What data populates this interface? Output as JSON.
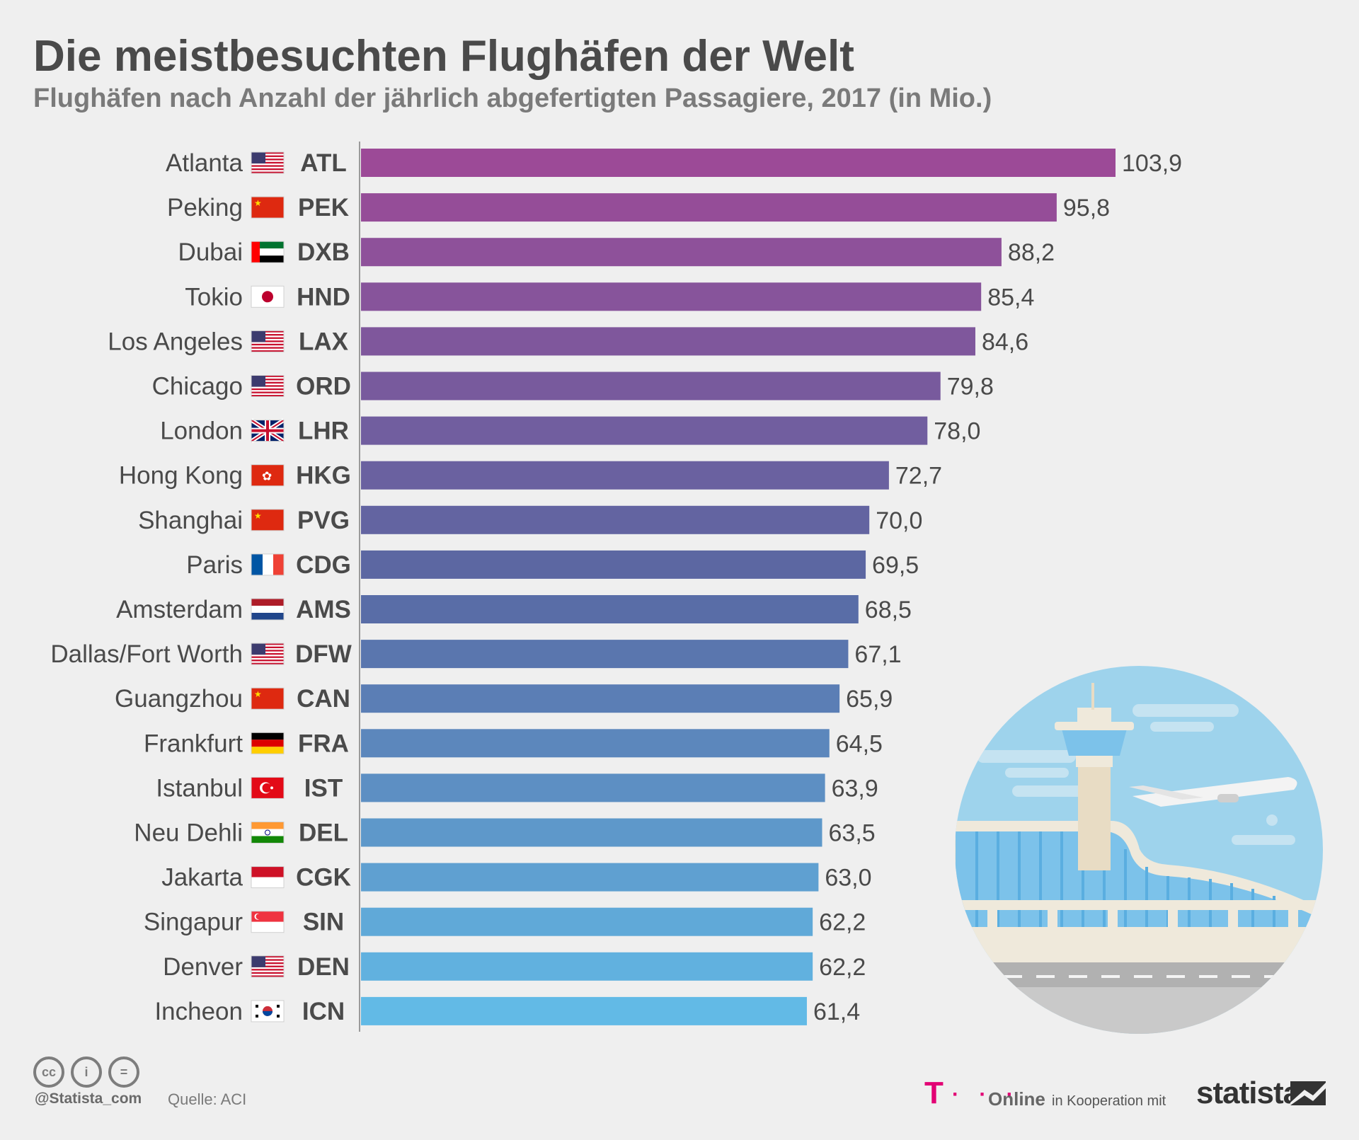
{
  "title": "Die meistbesuchten Flughäfen der Welt",
  "subtitle": "Flughäfen nach Anzahl der jährlich abgefertigten Passagiere, 2017 (in Mio.)",
  "footer": {
    "cc_icons": [
      "cc",
      "i",
      "="
    ],
    "handle": "@Statista_com",
    "source": "Quelle: ACI",
    "telekom_mark": "T",
    "telekom_dots": "· · ·",
    "online": "Online",
    "cooperation": "in Kooperation mit",
    "brand": "statista"
  },
  "chart_data": {
    "type": "bar",
    "orientation": "horizontal",
    "categories": [
      "Atlanta",
      "Peking",
      "Dubai",
      "Tokio",
      "Los Angeles",
      "Chicago",
      "London",
      "Hong Kong",
      "Shanghai",
      "Paris",
      "Amsterdam",
      "Dallas/Fort Worth",
      "Guangzhou",
      "Frankfurt",
      "Istanbul",
      "Neu Dehli",
      "Jakarta",
      "Singapur",
      "Denver",
      "Incheon"
    ],
    "codes": [
      "ATL",
      "PEK",
      "DXB",
      "HND",
      "LAX",
      "ORD",
      "LHR",
      "HKG",
      "PVG",
      "CDG",
      "AMS",
      "DFW",
      "CAN",
      "FRA",
      "IST",
      "DEL",
      "CGK",
      "SIN",
      "DEN",
      "ICN"
    ],
    "flags": [
      "us",
      "cn",
      "ae",
      "jp",
      "us",
      "us",
      "gb",
      "hk",
      "cn",
      "fr",
      "nl",
      "us",
      "cn",
      "de",
      "tr",
      "in",
      "id",
      "sg",
      "us",
      "kr"
    ],
    "values": [
      103.9,
      95.8,
      88.2,
      85.4,
      84.6,
      79.8,
      78.0,
      72.7,
      70.0,
      69.5,
      68.5,
      67.1,
      65.9,
      64.5,
      63.9,
      63.5,
      63.0,
      62.2,
      62.2,
      61.4
    ],
    "value_labels": [
      "103,9",
      "95,8",
      "88,2",
      "85,4",
      "84,6",
      "79,8",
      "78,0",
      "72,7",
      "70,0",
      "69,5",
      "68,5",
      "67,1",
      "65,9",
      "64,5",
      "63,9",
      "63,5",
      "63,0",
      "62,2",
      "62,2",
      "61,4"
    ],
    "xlim": [
      0,
      103.9
    ],
    "grid": false,
    "colors": {
      "top": "#9c4a97",
      "mid": "#5869a3",
      "bottom": "#62bae6"
    }
  },
  "illustration": "airport-illustration"
}
